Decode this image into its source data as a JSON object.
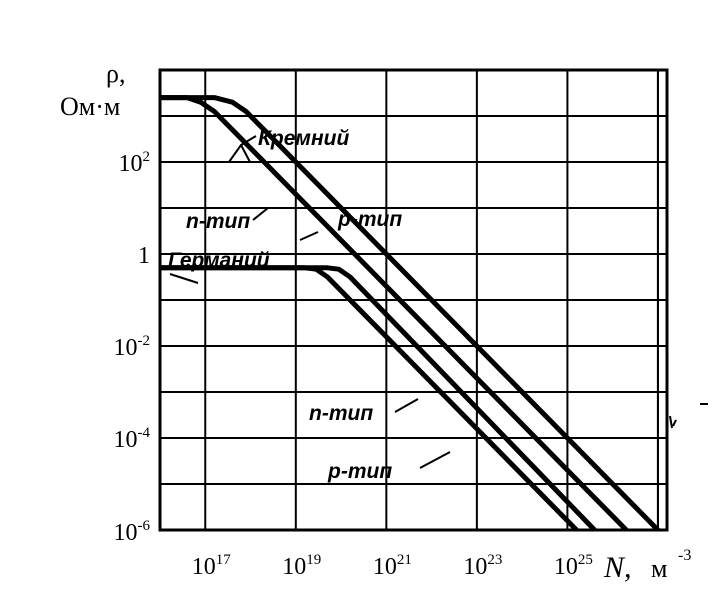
{
  "chart_data": {
    "type": "line",
    "title": "",
    "ylabel": [
      "ρ,",
      "Ом·м"
    ],
    "xlabel": {
      "symbol": "N,",
      "unit": "м",
      "unit_exp": "-3"
    },
    "x_scale": "log",
    "y_scale": "log",
    "xlim_exp": [
      16,
      27.2
    ],
    "ylim_exp": [
      -6,
      4
    ],
    "x_ticks": [
      {
        "base": "10",
        "exp": "17",
        "e": 17
      },
      {
        "base": "10",
        "exp": "19",
        "e": 19
      },
      {
        "base": "10",
        "exp": "21",
        "e": 21
      },
      {
        "base": "10",
        "exp": "23",
        "e": 23
      },
      {
        "base": "10",
        "exp": "25",
        "e": 25
      }
    ],
    "y_ticks": [
      {
        "base": "10",
        "exp": "2",
        "e": 2
      },
      {
        "base": "1",
        "exp": "",
        "e": 0
      },
      {
        "base": "10",
        "exp": "-2",
        "e": -2
      },
      {
        "base": "10",
        "exp": "-4",
        "e": -4
      },
      {
        "base": "10",
        "exp": "-6",
        "e": -6
      }
    ],
    "grid": true,
    "series": [
      {
        "material": "Кремний",
        "type": "n-тип",
        "points": [
          [
            16,
            3.4
          ],
          [
            16.6,
            3.4
          ],
          [
            16.9,
            3.3
          ],
          [
            17.2,
            3.1
          ],
          [
            17.5,
            2.8
          ],
          [
            26.3,
            -6
          ]
        ]
      },
      {
        "material": "Кремний",
        "type": "p-тип",
        "points": [
          [
            16,
            3.4
          ],
          [
            17.2,
            3.4
          ],
          [
            17.6,
            3.3
          ],
          [
            17.9,
            3.1
          ],
          [
            18.2,
            2.8
          ],
          [
            27,
            -6
          ]
        ]
      },
      {
        "material": "Германий",
        "type": "n-тип",
        "points": [
          [
            16,
            -0.3
          ],
          [
            19.2,
            -0.3
          ],
          [
            19.45,
            -0.33
          ],
          [
            19.7,
            -0.5
          ],
          [
            25.2,
            -6
          ]
        ]
      },
      {
        "material": "Германий",
        "type": "p-тип",
        "points": [
          [
            16,
            -0.3
          ],
          [
            19.7,
            -0.3
          ],
          [
            19.95,
            -0.33
          ],
          [
            20.2,
            -0.5
          ],
          [
            25.6,
            -6
          ]
        ]
      }
    ],
    "annotations": [
      {
        "id": "kremniy",
        "text": "Кремний"
      },
      {
        "id": "n-tip-top",
        "text": "n-тип"
      },
      {
        "id": "p-tip-top",
        "text": "p-тип"
      },
      {
        "id": "germaniy",
        "text": "Германий"
      },
      {
        "id": "n-tip-bottom",
        "text": "n-тип"
      },
      {
        "id": "p-tip-bottom",
        "text": "p-тип"
      }
    ]
  }
}
